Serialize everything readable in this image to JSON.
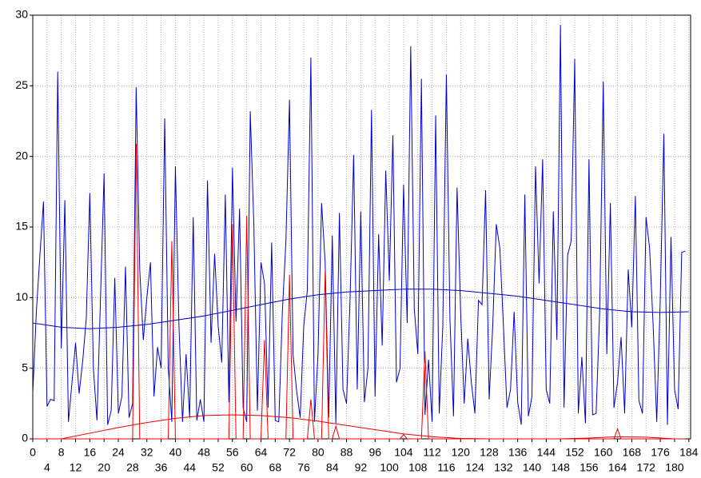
{
  "chart_data": {
    "type": "line",
    "x": [
      0,
      1,
      2,
      3,
      4,
      5,
      6,
      7,
      8,
      9,
      10,
      11,
      12,
      13,
      14,
      15,
      16,
      17,
      18,
      19,
      20,
      21,
      22,
      23,
      24,
      25,
      26,
      27,
      28,
      29,
      30,
      31,
      32,
      33,
      34,
      35,
      36,
      37,
      38,
      39,
      40,
      41,
      42,
      43,
      44,
      45,
      46,
      47,
      48,
      49,
      50,
      51,
      52,
      53,
      54,
      55,
      56,
      57,
      58,
      59,
      60,
      61,
      62,
      63,
      64,
      65,
      66,
      67,
      68,
      69,
      70,
      71,
      72,
      73,
      74,
      75,
      76,
      77,
      78,
      79,
      80,
      81,
      82,
      83,
      84,
      85,
      86,
      87,
      88,
      89,
      90,
      91,
      92,
      93,
      94,
      95,
      96,
      97,
      98,
      99,
      100,
      101,
      102,
      103,
      104,
      105,
      106,
      107,
      108,
      109,
      110,
      111,
      112,
      113,
      114,
      115,
      116,
      117,
      118,
      119,
      120,
      121,
      122,
      123,
      124,
      125,
      126,
      127,
      128,
      129,
      130,
      131,
      132,
      133,
      134,
      135,
      136,
      137,
      138,
      139,
      140,
      141,
      142,
      143,
      144,
      145,
      146,
      147,
      148,
      149,
      150,
      151,
      152,
      153,
      154,
      155,
      156,
      157,
      158,
      159,
      160,
      161,
      162,
      163,
      164,
      165,
      166,
      167,
      168,
      169,
      170,
      171,
      172,
      173,
      174,
      175,
      176,
      177,
      178,
      179,
      180,
      181,
      182,
      183
    ],
    "series": [
      {
        "color": "#0000cc",
        "values": [
          3.2,
          9,
          13,
          16.8,
          2.3,
          2.8,
          2.7,
          26,
          6.4,
          16.9,
          1.2,
          4,
          6.8,
          3.2,
          5.5,
          8.5,
          17.4,
          5,
          1.3,
          10,
          18.8,
          1.0,
          2,
          11.4,
          1.8,
          3,
          12.2,
          1.5,
          2.5,
          24.9,
          12,
          7,
          10,
          12.5,
          3,
          6.5,
          5,
          22.7,
          5,
          1.2,
          19.3,
          8,
          1.2,
          6,
          1.5,
          15.7,
          1.3,
          2.8,
          1.2,
          18.3,
          6.8,
          13.1,
          8,
          5.4,
          17.3,
          2.6,
          19.2,
          8.3,
          16.3,
          2.2,
          1.2,
          23.2,
          15.2,
          2,
          12.5,
          11,
          2.2,
          13.9,
          1.3,
          1.2,
          9,
          14,
          24,
          6,
          3.4,
          1.5,
          8,
          10.5,
          27,
          1.2,
          6,
          16.7,
          12.5,
          1.5,
          14.4,
          1.1,
          16,
          3.5,
          2.5,
          10,
          20.1,
          3.5,
          16.1,
          2.6,
          5,
          23.3,
          3,
          14.5,
          6.6,
          19,
          11.2,
          21.5,
          4,
          5,
          18,
          8.2,
          27.8,
          9.2,
          6,
          25.5,
          1.7,
          5.6,
          1.2,
          22.9,
          1.8,
          8,
          25.8,
          8.5,
          1.6,
          17.8,
          9,
          2.5,
          7.1,
          4,
          1.8,
          9.8,
          9.5,
          17.6,
          2.8,
          8,
          15.2,
          13.5,
          8,
          2.2,
          3.5,
          9,
          2.6,
          1,
          17.3,
          1.6,
          3,
          19.3,
          11,
          19.8,
          3.5,
          2.5,
          16.1,
          7,
          29.3,
          2.2,
          13,
          14,
          26.9,
          1.8,
          5.8,
          1.1,
          19.8,
          1.7,
          1.8,
          9,
          25.3,
          6,
          16.7,
          2.2,
          4,
          7.2,
          1.8,
          12,
          7.9,
          17.2,
          2.7,
          1.8,
          15.7,
          13.5,
          8,
          1.2,
          10,
          21.6,
          1,
          14.3,
          3.5,
          2.1,
          13.2,
          13.3
        ]
      },
      {
        "color": "#ee0000",
        "values": [
          0,
          0,
          0,
          0,
          0,
          0,
          0,
          0,
          0,
          0,
          0,
          0,
          0,
          0,
          0,
          0,
          0,
          0,
          0,
          0,
          0,
          0,
          0,
          0,
          0,
          0,
          0,
          0,
          0,
          20.9,
          0,
          0,
          0,
          0,
          0,
          0,
          0,
          0,
          0,
          14,
          0,
          0,
          0,
          0,
          0,
          0,
          0,
          0,
          0,
          0,
          0,
          0,
          0,
          0,
          0,
          0,
          15.2,
          0,
          0,
          0,
          15.8,
          0,
          0,
          0,
          0,
          7,
          0,
          0,
          0,
          0,
          0,
          0,
          11.6,
          0,
          0,
          0,
          0,
          0,
          2.8,
          0,
          0,
          0,
          11.9,
          0,
          0,
          0.9,
          0,
          0,
          0,
          0,
          0,
          0,
          0,
          0,
          0,
          0,
          0,
          0,
          0,
          0,
          0,
          0,
          0,
          0,
          0.3,
          0,
          0,
          0,
          0,
          0,
          6.2,
          0,
          0,
          0,
          0,
          0,
          0,
          0,
          0,
          0,
          0,
          0,
          0,
          0,
          0,
          0,
          0,
          0,
          0,
          0,
          0,
          0,
          0,
          0,
          0,
          0,
          0,
          0,
          0,
          0,
          0,
          0,
          0,
          0,
          0,
          0,
          0,
          0,
          0,
          0,
          0,
          0,
          0,
          0,
          0,
          0,
          0,
          0,
          0,
          0,
          0,
          0,
          0,
          0,
          0.7,
          0,
          0,
          0,
          0,
          0,
          0,
          0,
          0,
          0,
          0,
          0,
          0,
          0,
          0,
          0,
          0,
          0,
          0,
          0
        ]
      },
      {
        "color": "#0000cc",
        "x": [
          0,
          8,
          16,
          24,
          32,
          40,
          48,
          56,
          64,
          72,
          80,
          88,
          96,
          104,
          112,
          120,
          128,
          136,
          144,
          152,
          160,
          168,
          176,
          184
        ],
        "values": [
          8.2,
          7.9,
          7.8,
          7.9,
          8.1,
          8.4,
          8.7,
          9.1,
          9.5,
          9.9,
          10.2,
          10.4,
          10.5,
          10.6,
          10.6,
          10.5,
          10.3,
          10.1,
          9.8,
          9.5,
          9.2,
          9.0,
          8.95,
          9.0
        ]
      },
      {
        "color": "#ee0000",
        "x": [
          8,
          16,
          24,
          32,
          40,
          48,
          56,
          64,
          72,
          80,
          88,
          96,
          104,
          112,
          120,
          128,
          136,
          148,
          156,
          164,
          172,
          180
        ],
        "values": [
          0,
          0.4,
          0.8,
          1.15,
          1.45,
          1.65,
          1.7,
          1.65,
          1.5,
          1.25,
          0.95,
          0.65,
          0.35,
          0.15,
          0.03,
          0,
          null,
          0,
          0.06,
          0.15,
          0.12,
          0
        ]
      }
    ],
    "xlim": [
      0,
      184.5
    ],
    "xticks": [
      0,
      4,
      8,
      12,
      16,
      20,
      24,
      28,
      32,
      36,
      40,
      44,
      48,
      52,
      56,
      60,
      64,
      68,
      72,
      76,
      80,
      84,
      88,
      92,
      96,
      100,
      104,
      108,
      112,
      116,
      120,
      124,
      128,
      132,
      136,
      140,
      144,
      148,
      152,
      156,
      160,
      164,
      168,
      172,
      176,
      180,
      184
    ],
    "ylim": [
      0,
      30
    ],
    "yticks": [
      0,
      5,
      10,
      15,
      20,
      25,
      30
    ],
    "grid": true
  }
}
